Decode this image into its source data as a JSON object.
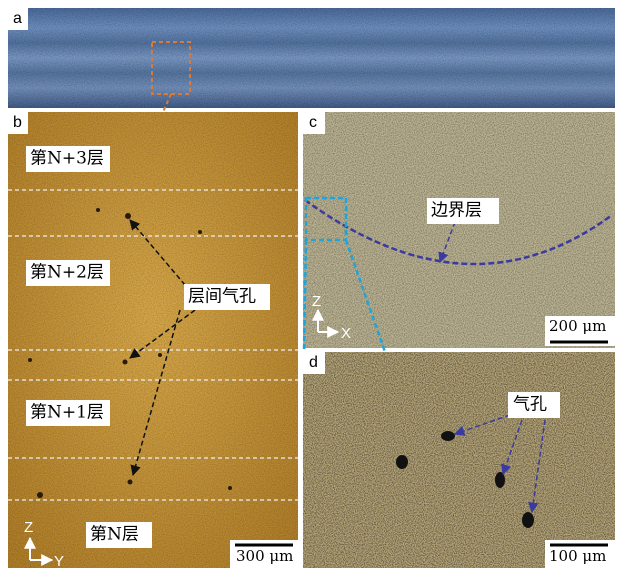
{
  "panels": [
    {
      "label": "a"
    },
    {
      "label": "b",
      "layers": [
        "第N+3层",
        "第N+2层",
        "第N+1层",
        "第N层"
      ],
      "annotation": "层间气孔",
      "scale_bar": "300 μm",
      "axes": [
        "Z",
        "Y"
      ]
    },
    {
      "label": "c",
      "annotation": "边界层",
      "scale_bar": "200 μm",
      "axes": [
        "Z",
        "X"
      ]
    },
    {
      "label": "d",
      "annotation": "气孔",
      "scale_bar": "100 μm"
    }
  ]
}
